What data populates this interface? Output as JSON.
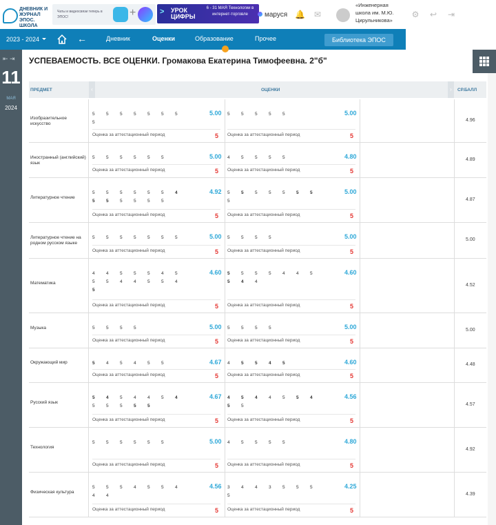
{
  "header": {
    "logo_text": "ДНЕВНИК И ЖУРНАЛ ЭПОС. ШКОЛА",
    "promo1_text": "Чаты и видеосвязи теперь в ЭПОС!",
    "promo2_brand": "УРОК ЦИФРЫ",
    "promo2_text": "6 - 31 МАЯ Технологии в интернет-торговле",
    "marusya": "маруся",
    "school": "«Инженерная школа им. М.Ю. Цирульникова»"
  },
  "nav": {
    "year": "2023 - 2024",
    "items": [
      "Дневник",
      "Оценки",
      "Образование",
      "Прочее"
    ],
    "active": "Оценки",
    "library": "Библиотека ЭПОС"
  },
  "sidebar": {
    "day": "11",
    "month": "МАЯ",
    "year": "2024"
  },
  "title": "УСПЕВАЕМОСТЬ. ВСЕ ОЦЕНКИ. Громакова Екатерина Тимофеевна. 2\"б\"",
  "table": {
    "headers": {
      "subject": "ПРЕДМЕТ",
      "grades": "ОЦЕНКИ",
      "gpa": "СР.БАЛЛ"
    },
    "att_label": "Оценка за аттестационный период",
    "rows": [
      {
        "subject": "Изобразительное искусство",
        "p1": {
          "marks": [
            "5",
            "5",
            "5",
            "5",
            "5",
            "5",
            "5",
            "5"
          ],
          "bold": [],
          "avg": "5.00",
          "att": "5"
        },
        "p2": {
          "marks": [
            "5",
            "5",
            "5",
            "5",
            "5"
          ],
          "bold": [],
          "avg": "5.00",
          "att": "5"
        },
        "gpa": "4.96"
      },
      {
        "subject": "Иностранный (английский) язык",
        "p1": {
          "marks": [
            "5",
            "5",
            "5",
            "5",
            "5",
            "5"
          ],
          "bold": [],
          "avg": "5.00",
          "att": "5"
        },
        "p2": {
          "marks": [
            "4",
            "5",
            "5",
            "5",
            "5"
          ],
          "bold": [],
          "avg": "4.80",
          "att": "5"
        },
        "gpa": "4.89"
      },
      {
        "subject": "Литературное чтение",
        "p1": {
          "marks": [
            "5",
            "5",
            "5",
            "5",
            "5",
            "5",
            "4",
            "5",
            "5",
            "5",
            "5",
            "5",
            "5"
          ],
          "bold": [
            6,
            7,
            8
          ],
          "avg": "4.92",
          "att": "5"
        },
        "p2": {
          "marks": [
            "5",
            "5",
            "5",
            "5",
            "5",
            "5",
            "5",
            "5"
          ],
          "bold": [
            1,
            5,
            6
          ],
          "avg": "5.00",
          "att": "5"
        },
        "gpa": "4.87"
      },
      {
        "subject": "Литературное чтение на родном русском языке",
        "p1": {
          "marks": [
            "5",
            "5",
            "5",
            "5",
            "5",
            "5",
            "5"
          ],
          "bold": [],
          "avg": "5.00",
          "att": "5"
        },
        "p2": {
          "marks": [
            "5",
            "5",
            "5",
            "5"
          ],
          "bold": [],
          "avg": "5.00",
          "att": "5"
        },
        "gpa": "5.00"
      },
      {
        "subject": "Математика",
        "p1": {
          "marks": [
            "4",
            "4",
            "5",
            "5",
            "5",
            "4",
            "5",
            "5",
            "5",
            "4",
            "4",
            "5",
            "5",
            "4",
            "5"
          ],
          "bold": [
            14
          ],
          "avg": "4.60",
          "att": "5"
        },
        "p2": {
          "marks": [
            "5",
            "5",
            "5",
            "5",
            "4",
            "4",
            "5",
            "5",
            "4",
            "4"
          ],
          "bold": [
            0,
            7,
            8
          ],
          "avg": "4.60",
          "att": "5"
        },
        "gpa": "4.52"
      },
      {
        "subject": "Музыка",
        "p1": {
          "marks": [
            "5",
            "5",
            "5",
            "5"
          ],
          "bold": [],
          "avg": "5.00",
          "att": "5"
        },
        "p2": {
          "marks": [
            "5",
            "5",
            "5",
            "5"
          ],
          "bold": [],
          "avg": "5.00",
          "att": "5"
        },
        "gpa": "5.00"
      },
      {
        "subject": "Окружающий мир",
        "p1": {
          "marks": [
            "5",
            "4",
            "5",
            "4",
            "5",
            "5"
          ],
          "bold": [
            0
          ],
          "avg": "4.67",
          "att": "5"
        },
        "p2": {
          "marks": [
            "4",
            "5",
            "5",
            "4",
            "5"
          ],
          "bold": [
            1,
            2,
            3,
            4
          ],
          "avg": "4.60",
          "att": "5"
        },
        "gpa": "4.48"
      },
      {
        "subject": "Русский язык",
        "p1": {
          "marks": [
            "5",
            "4",
            "5",
            "4",
            "4",
            "5",
            "4",
            "5",
            "5",
            "5",
            "5",
            "5"
          ],
          "bold": [
            0,
            1,
            6,
            10,
            11
          ],
          "avg": "4.67",
          "att": "5"
        },
        "p2": {
          "marks": [
            "4",
            "5",
            "4",
            "4",
            "5",
            "5",
            "4",
            "5",
            "5"
          ],
          "bold": [
            0,
            1,
            2,
            5,
            6,
            7
          ],
          "avg": "4.56",
          "att": "5"
        },
        "gpa": "4.57"
      },
      {
        "subject": "Технология",
        "p1": {
          "marks": [
            "5",
            "5",
            "5",
            "5",
            "5",
            "5"
          ],
          "bold": [],
          "avg": "5.00",
          "att": "5"
        },
        "p2": {
          "marks": [
            "4",
            "5",
            "5",
            "5",
            "5"
          ],
          "bold": [],
          "avg": "4.80",
          "att": "5"
        },
        "gpa": "4.92"
      },
      {
        "subject": "Физическая культура",
        "p1": {
          "marks": [
            "5",
            "5",
            "5",
            "4",
            "5",
            "5",
            "4",
            "4",
            "4"
          ],
          "bold": [],
          "avg": "4.56",
          "att": "5"
        },
        "p2": {
          "marks": [
            "3",
            "4",
            "4",
            "3",
            "5",
            "5",
            "5",
            "5"
          ],
          "bold": [],
          "avg": "4.25",
          "att": "5"
        },
        "gpa": "4.39"
      }
    ]
  }
}
